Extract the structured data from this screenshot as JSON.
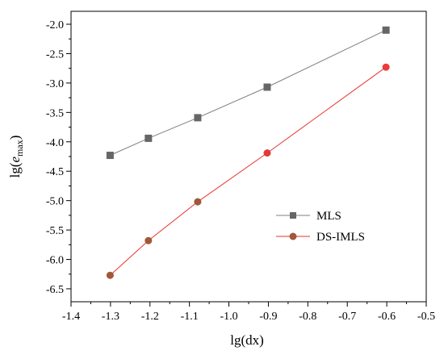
{
  "chart_data": {
    "type": "line",
    "title": "",
    "xlabel": "lg(dx)",
    "ylabel": {
      "prefix": "lg(",
      "italic": "e",
      "sub": "max",
      "suffix": ")"
    },
    "xlim": [
      -1.4,
      -0.5
    ],
    "ylim": [
      -6.72,
      -1.78
    ],
    "xticks": [
      -1.4,
      -1.3,
      -1.2,
      -1.1,
      -1.0,
      -0.9,
      -0.8,
      -0.7,
      -0.6,
      -0.5
    ],
    "xtick_labels": [
      "-1.4",
      "-1.3",
      "-1.2",
      "-1.1",
      "-1.0",
      "-0.9",
      "-0.8",
      "-0.7",
      "-0.6",
      "-0.5"
    ],
    "yticks": [
      -6.5,
      -6.0,
      -5.5,
      -5.0,
      -4.5,
      -4.0,
      -3.5,
      -3.0,
      -2.5,
      -2.0
    ],
    "ytick_labels": [
      "-6.5",
      "-6.0",
      "-5.5",
      "-5.0",
      "-4.5",
      "-4.0",
      "-3.5",
      "-3.0",
      "-2.5",
      "-2.0"
    ],
    "grid": false,
    "legend_position": "lower-right",
    "series": [
      {
        "name": "MLS",
        "marker": "square",
        "line_color": "#7f7f7f",
        "marker_color": "#666666",
        "x": [
          -1.301,
          -1.204,
          -1.079,
          -0.903,
          -0.602
        ],
        "y": [
          -4.23,
          -3.94,
          -3.59,
          -3.07,
          -2.1
        ]
      },
      {
        "name": "DS-IMLS",
        "marker": "circle",
        "line_color": "#e8322e",
        "marker_color": "#e8322e",
        "marker_colors": [
          "#a0583a",
          "#a0583a",
          "#a0583a",
          "#e23a3a",
          "#ee3a3a"
        ],
        "x": [
          -1.301,
          -1.204,
          -1.079,
          -0.903,
          -0.602
        ],
        "y": [
          -6.27,
          -5.68,
          -5.02,
          -4.19,
          -2.73
        ]
      }
    ]
  }
}
